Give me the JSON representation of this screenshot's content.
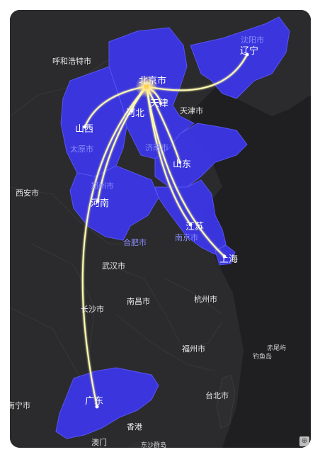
{
  "map": {
    "colors": {
      "land": "#2b2b2d",
      "sea": "#1f1f21",
      "highlight": "#3b36e6",
      "highlight_edge": "#5b57ff",
      "flow_line": "#fffbb0",
      "glow": "#ffe88a"
    },
    "origin": {
      "name": "北京市",
      "label": "北京市"
    },
    "highlighted_provinces": [
      {
        "name": "河北",
        "label": "河北"
      },
      {
        "name": "天津",
        "label": "天津"
      },
      {
        "name": "山西",
        "label": "山西"
      },
      {
        "name": "辽宁",
        "label": "辽宁"
      },
      {
        "name": "山东",
        "label": "山东"
      },
      {
        "name": "河南",
        "label": "河南"
      },
      {
        "name": "江苏",
        "label": "江苏"
      },
      {
        "name": "上海",
        "label": "上海"
      },
      {
        "name": "广东",
        "label": "广东"
      }
    ],
    "flow_destinations": [
      "天津",
      "河北",
      "山西",
      "辽宁",
      "山东",
      "河南",
      "江苏",
      "上海",
      "广东"
    ],
    "base_labels": [
      {
        "name": "呼和浩特市",
        "style": "plain"
      },
      {
        "name": "沈阳市",
        "style": "blue"
      },
      {
        "name": "天津市",
        "style": "plain"
      },
      {
        "name": "太原市",
        "style": "blue"
      },
      {
        "name": "济南市",
        "style": "blue"
      },
      {
        "name": "西安市",
        "style": "plain"
      },
      {
        "name": "郑州市",
        "style": "blue"
      },
      {
        "name": "合肥市",
        "style": "blue"
      },
      {
        "name": "南京市",
        "style": "blue"
      },
      {
        "name": "武汉市",
        "style": "plain"
      },
      {
        "name": "南昌市",
        "style": "plain"
      },
      {
        "name": "杭州市",
        "style": "plain"
      },
      {
        "name": "长沙市",
        "style": "plain"
      },
      {
        "name": "福州市",
        "style": "plain"
      },
      {
        "name": "赤尾屿",
        "style": "small"
      },
      {
        "name": "钓鱼岛",
        "style": "small"
      },
      {
        "name": "台北市",
        "style": "plain"
      },
      {
        "name": "南宁市",
        "style": "plain"
      },
      {
        "name": "香港",
        "style": "plain"
      },
      {
        "name": "澳门",
        "style": "plain"
      },
      {
        "name": "东沙群岛",
        "style": "small"
      }
    ],
    "control_icon": "zoom-icon"
  }
}
